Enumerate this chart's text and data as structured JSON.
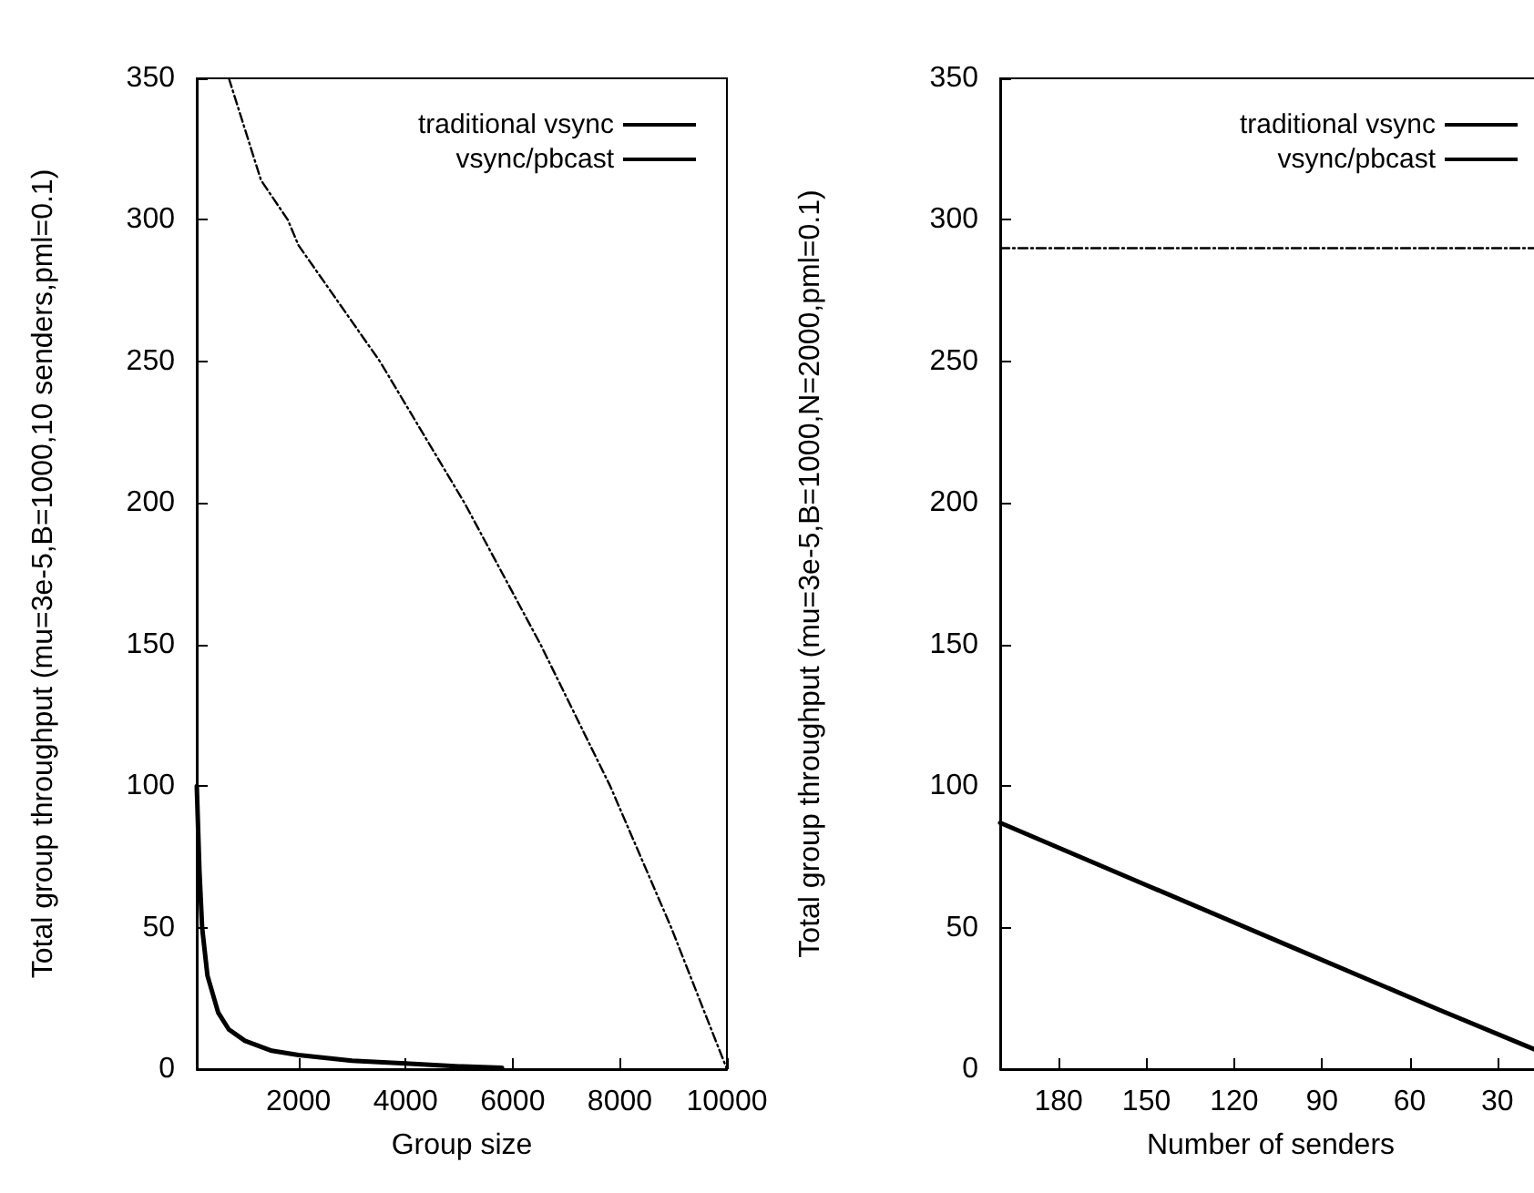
{
  "chart_data": [
    {
      "type": "line",
      "xlabel": "Group size",
      "ylabel": "Total group throughput (mu=3e-5,B=1000,10 senders,pml=0.1)",
      "xlim": [
        100,
        10000
      ],
      "xticks": [
        2000,
        4000,
        6000,
        8000,
        10000
      ],
      "ylim": [
        0,
        350
      ],
      "yticks": [
        0,
        50,
        100,
        150,
        200,
        250,
        300,
        350
      ],
      "grid": false,
      "legend": "top right",
      "marker": "none",
      "series": [
        {
          "name": "traditional vsync",
          "color": "#000000",
          "line_style": "solid",
          "x": [
            100,
            150,
            200,
            300,
            500,
            700,
            1000,
            1500,
            2000,
            3000,
            4000,
            5000,
            5800
          ],
          "values": [
            100,
            70,
            50,
            33,
            20,
            14,
            10,
            6.5,
            5,
            3,
            2,
            1,
            0.5
          ]
        },
        {
          "name": "vsync/pbcast",
          "color": "#000000",
          "line_style": "dashed",
          "x": [
            700,
            1300,
            1800,
            2000,
            3520,
            5100,
            6520,
            7820,
            8960,
            10000
          ],
          "values": [
            350,
            314,
            300,
            291,
            250,
            200,
            150,
            100,
            50,
            0
          ]
        }
      ]
    },
    {
      "type": "line",
      "xlabel": "Number of senders",
      "ylabel": "Total group throughput (mu=3e-5,B=1000,N=2000,pml=0.1)",
      "xlim": [
        200,
        15
      ],
      "xticks": [
        180,
        150,
        120,
        90,
        60,
        30
      ],
      "ylim": [
        0,
        350
      ],
      "yticks": [
        0,
        50,
        100,
        150,
        200,
        250,
        300,
        350
      ],
      "grid": false,
      "legend": "top right",
      "marker": "none",
      "series": [
        {
          "name": "traditional vsync",
          "color": "#000000",
          "line_style": "solid",
          "x": [
            200,
            150,
            100,
            50,
            15
          ],
          "values": [
            87,
            65,
            43,
            21,
            6
          ]
        },
        {
          "name": "vsync/pbcast",
          "color": "#000000",
          "line_style": "dashed",
          "x": [
            200,
            15
          ],
          "values": [
            290,
            290
          ]
        }
      ]
    }
  ]
}
